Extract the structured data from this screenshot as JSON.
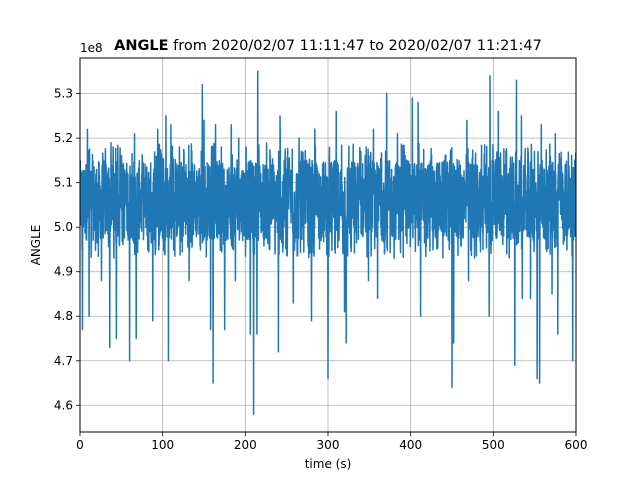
{
  "chart_data": {
    "type": "line",
    "title_bold": "ANGLE",
    "title_rest": " from 2020/02/07 11:11:47 to 2020/02/07 11:21:47",
    "xlabel": "time (s)",
    "ylabel": "ANGLE",
    "offset_label": "1e8",
    "xlim": [
      0,
      600
    ],
    "ylim": [
      4.54,
      5.38
    ],
    "xticks": [
      0,
      100,
      200,
      300,
      400,
      500,
      600
    ],
    "yticks": [
      4.6,
      4.7,
      4.8,
      4.9,
      5.0,
      5.1,
      5.2,
      5.3
    ],
    "ytick_labels": [
      "4.6",
      "4.7",
      "4.8",
      "4.9",
      "5.0",
      "5.1",
      "5.2",
      "5.3"
    ],
    "grid": true,
    "legend": "none",
    "series_color": "#1f77b4",
    "baseline_level": 5.06,
    "band_low": 4.97,
    "band_high": 5.15,
    "spikes_up": [
      [
        9,
        5.22
      ],
      [
        26,
        5.2
      ],
      [
        40,
        5.18
      ],
      [
        66,
        5.21
      ],
      [
        88,
        5.2
      ],
      [
        94,
        5.22
      ],
      [
        104,
        5.25
      ],
      [
        110,
        5.23
      ],
      [
        148,
        5.32
      ],
      [
        150,
        5.24
      ],
      [
        164,
        5.23
      ],
      [
        171,
        5.18
      ],
      [
        183,
        5.23
      ],
      [
        192,
        5.2
      ],
      [
        210,
        5.26
      ],
      [
        215,
        5.35
      ],
      [
        242,
        5.25
      ],
      [
        265,
        5.2
      ],
      [
        284,
        5.22
      ],
      [
        310,
        5.26
      ],
      [
        355,
        5.22
      ],
      [
        371,
        5.3
      ],
      [
        384,
        5.21
      ],
      [
        402,
        5.29
      ],
      [
        409,
        5.28
      ],
      [
        450,
        5.24
      ],
      [
        468,
        5.24
      ],
      [
        496,
        5.34
      ],
      [
        506,
        5.26
      ],
      [
        528,
        5.33
      ],
      [
        534,
        5.25
      ],
      [
        553,
        5.25
      ],
      [
        558,
        5.23
      ],
      [
        575,
        5.21
      ]
    ],
    "spikes_down": [
      [
        3,
        4.77
      ],
      [
        11,
        4.8
      ],
      [
        26,
        4.88
      ],
      [
        36,
        4.73
      ],
      [
        44,
        4.75
      ],
      [
        60,
        4.7
      ],
      [
        68,
        4.75
      ],
      [
        88,
        4.79
      ],
      [
        107,
        4.7
      ],
      [
        132,
        4.88
      ],
      [
        158,
        4.77
      ],
      [
        161,
        4.65
      ],
      [
        175,
        4.77
      ],
      [
        188,
        4.88
      ],
      [
        206,
        4.76
      ],
      [
        210,
        4.58
      ],
      [
        214,
        4.76
      ],
      [
        240,
        4.72
      ],
      [
        258,
        4.83
      ],
      [
        280,
        4.79
      ],
      [
        300,
        4.66
      ],
      [
        320,
        4.81
      ],
      [
        322,
        4.74
      ],
      [
        349,
        4.88
      ],
      [
        360,
        4.84
      ],
      [
        380,
        4.93
      ],
      [
        412,
        4.8
      ],
      [
        450,
        4.64
      ],
      [
        452,
        4.74
      ],
      [
        470,
        4.88
      ],
      [
        495,
        4.8
      ],
      [
        526,
        4.69
      ],
      [
        535,
        4.84
      ],
      [
        545,
        4.84
      ],
      [
        553,
        4.66
      ],
      [
        556,
        4.65
      ],
      [
        571,
        4.85
      ],
      [
        578,
        4.76
      ],
      [
        596,
        4.7
      ]
    ]
  }
}
